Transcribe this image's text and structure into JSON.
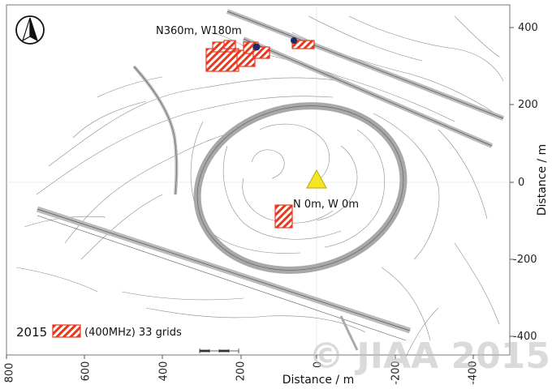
{
  "x_axis": {
    "title": "Distance / m",
    "ticks": [
      "800",
      "600",
      "400",
      "200",
      "0",
      "-200",
      "-400"
    ]
  },
  "y_axis": {
    "title": "Distance / m",
    "ticks": [
      "400",
      "200",
      "0",
      "-200",
      "-400"
    ]
  },
  "annotations": {
    "survey_point": "N360m, W180m",
    "origin": "N 0m, W 0m"
  },
  "legend": {
    "year": "2015",
    "label": "(400MHz) 33 grids"
  },
  "watermark": "© JIAA 2015",
  "colors": {
    "grid_hatch": "#e8391e",
    "origin_marker": "#f5e625",
    "survey_dot": "#1f2a6b",
    "contour": "#888888"
  },
  "icons": {
    "north_arrow": "north-arrow-icon"
  }
}
